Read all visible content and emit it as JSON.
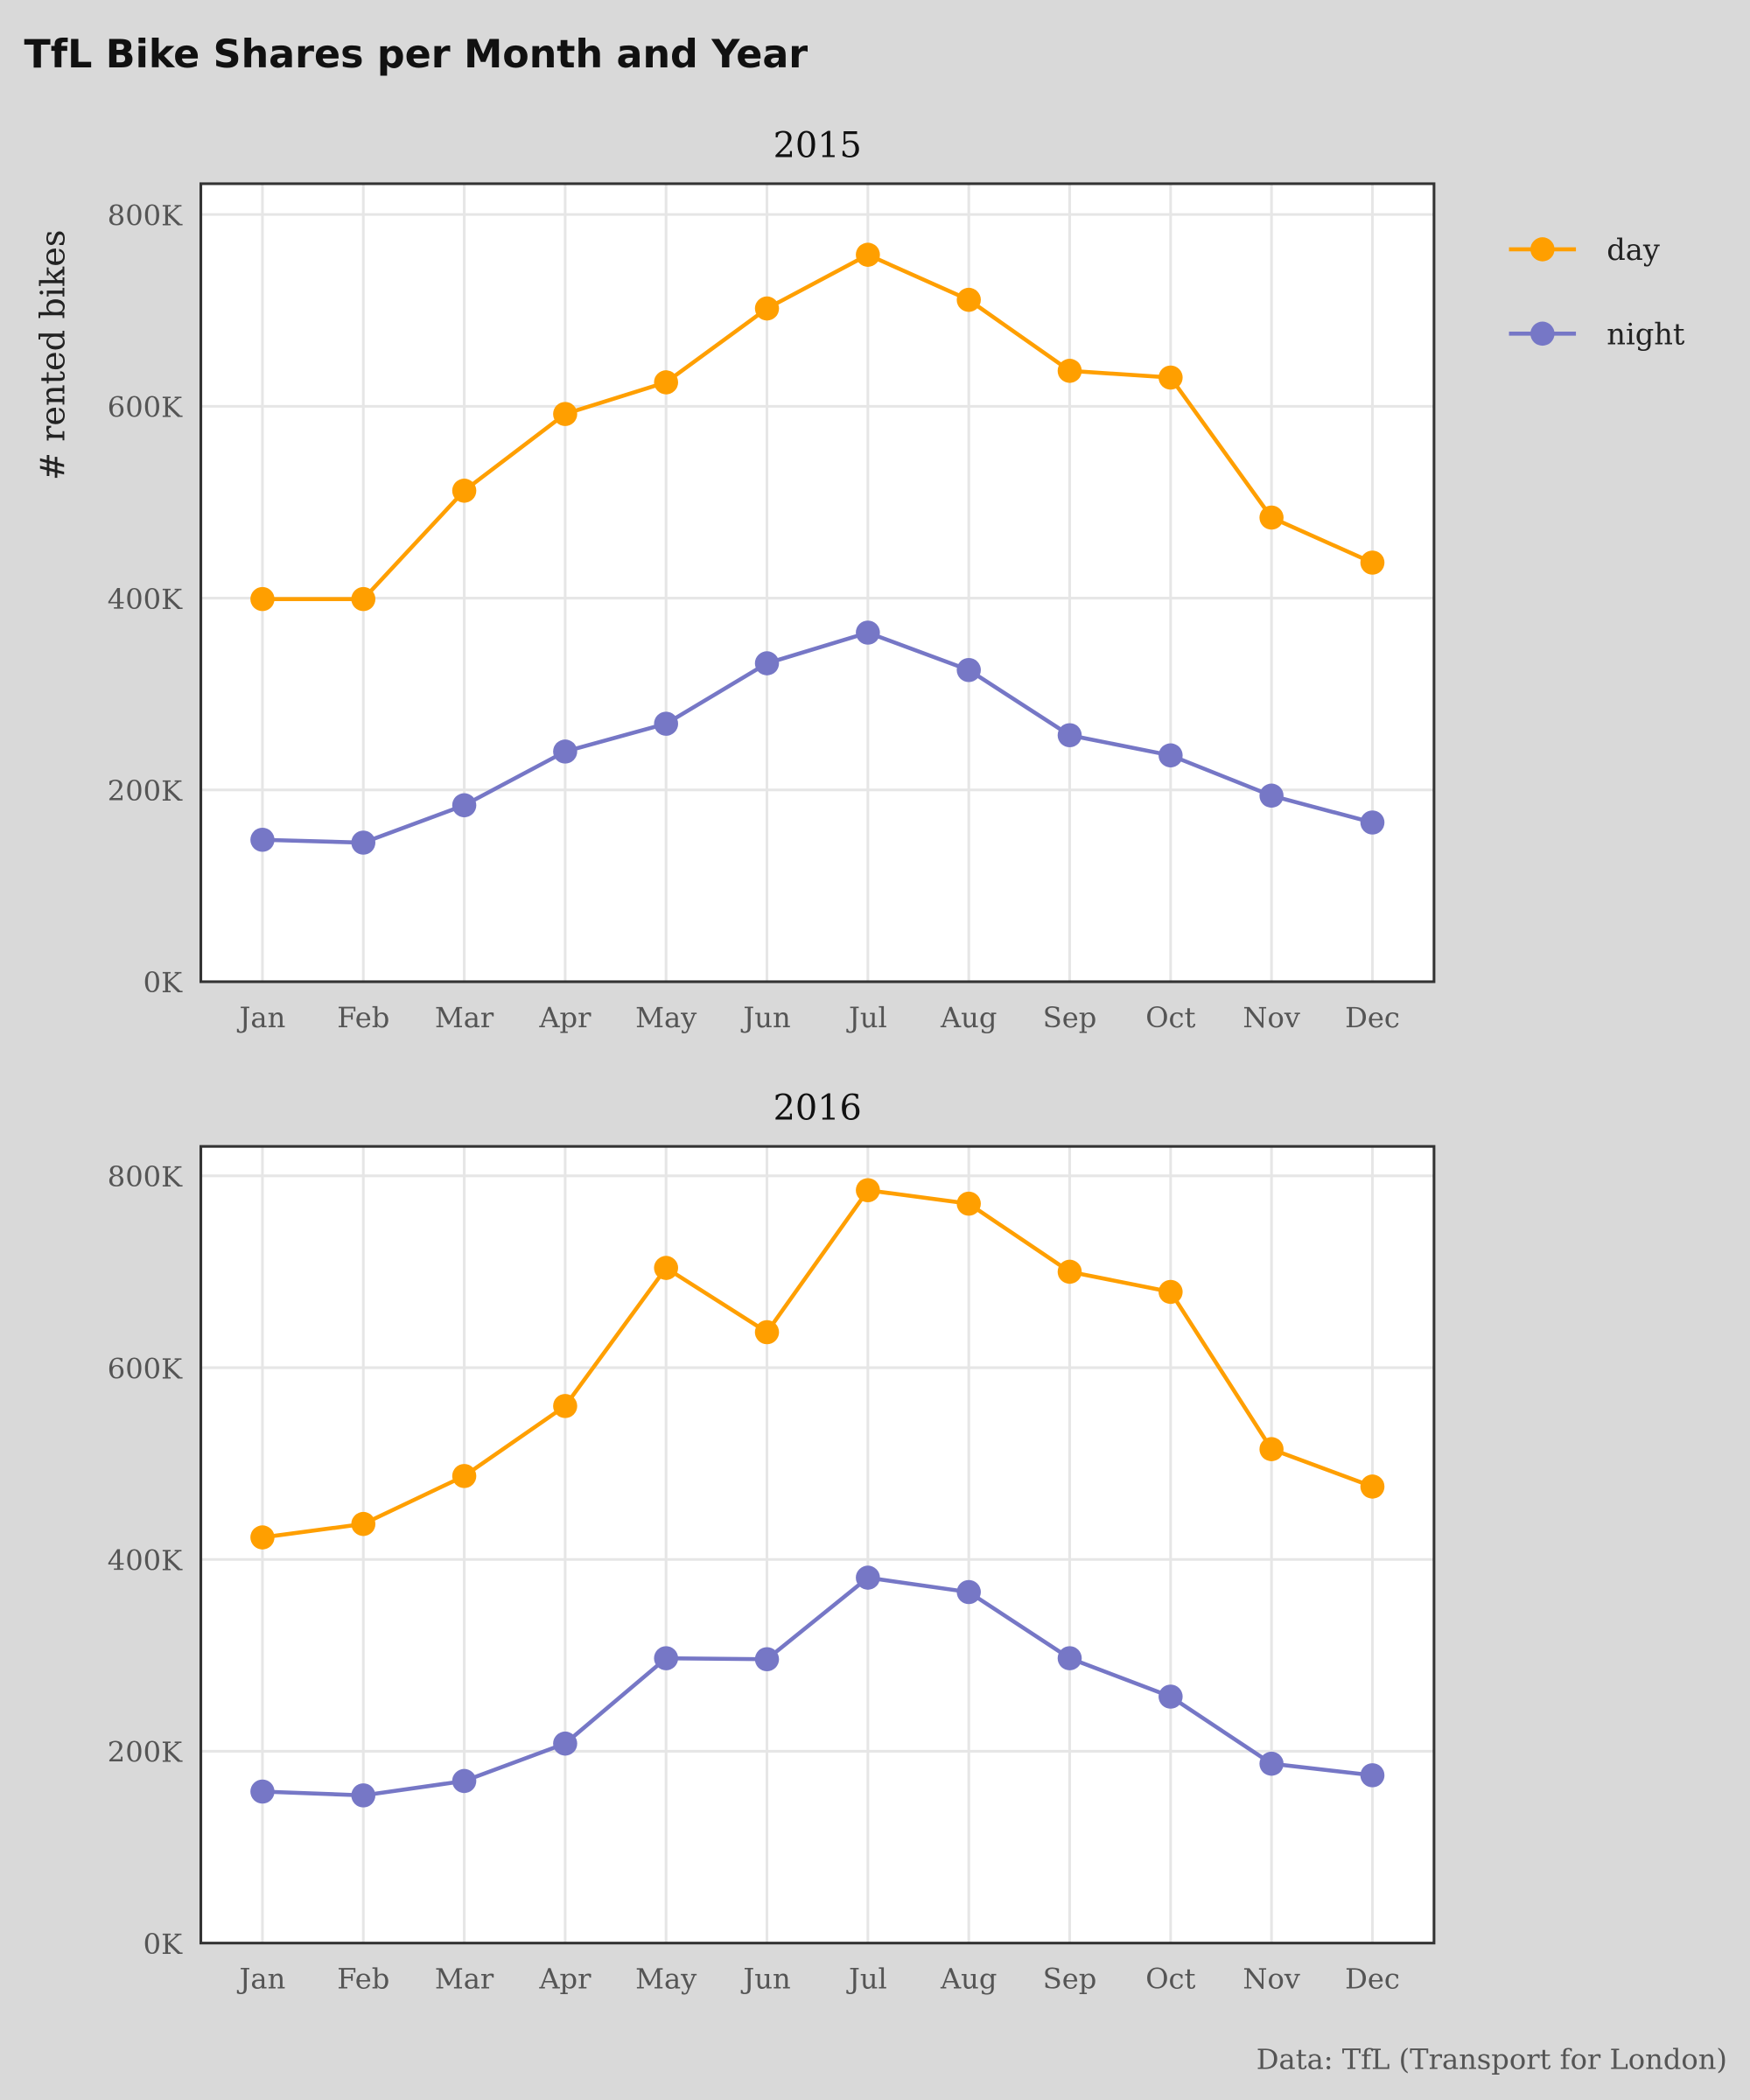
{
  "chart_data": {
    "type": "line",
    "title": "TfL Bike Shares per Month and Year",
    "ylabel": "# rented bikes",
    "caption": "Data: TfL (Transport for London)",
    "categories": [
      "Jan",
      "Feb",
      "Mar",
      "Apr",
      "May",
      "Jun",
      "Jul",
      "Aug",
      "Sep",
      "Oct",
      "Nov",
      "Dec"
    ],
    "yticks": [
      0,
      200000,
      400000,
      600000,
      800000
    ],
    "ytick_labels": [
      "0K",
      "200K",
      "400K",
      "600K",
      "800K"
    ],
    "ylim": [
      0,
      830000
    ],
    "legend": {
      "position": "right",
      "entries": [
        {
          "name": "day",
          "color": "#FF9F00"
        },
        {
          "name": "night",
          "color": "#7677C6"
        }
      ]
    },
    "panels": [
      {
        "title": "2015",
        "series": [
          {
            "name": "day",
            "color": "#FF9F00",
            "values": [
              399000,
              399000,
              512000,
              592000,
              625000,
              702000,
              758000,
              711000,
              637000,
              630000,
              484000,
              437000
            ]
          },
          {
            "name": "night",
            "color": "#7677C6",
            "values": [
              148000,
              145000,
              184000,
              240000,
              269000,
              332000,
              364000,
              325000,
              257000,
              236000,
              194000,
              166000
            ]
          }
        ]
      },
      {
        "title": "2016",
        "series": [
          {
            "name": "day",
            "color": "#FF9F00",
            "values": [
              423000,
              437000,
              487000,
              560000,
              704000,
              637000,
              785000,
              771000,
              700000,
              679000,
              515000,
              476000
            ]
          },
          {
            "name": "night",
            "color": "#7677C6",
            "values": [
              158000,
              154000,
              169000,
              208000,
              297000,
              296000,
              381000,
              366000,
              297000,
              257000,
              187000,
              175000
            ]
          }
        ]
      }
    ]
  }
}
